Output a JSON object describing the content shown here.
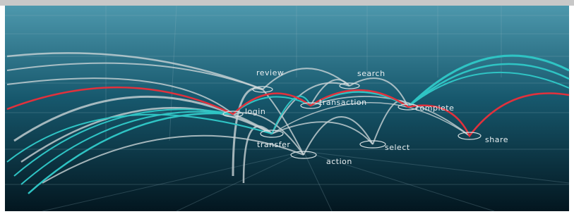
{
  "nodes": [
    {
      "label": "review"
    },
    {
      "label": "search"
    },
    {
      "label": "login"
    },
    {
      "label": "transaction"
    },
    {
      "label": "complete"
    },
    {
      "label": "transfer"
    },
    {
      "label": "select"
    },
    {
      "label": "action"
    },
    {
      "label": "share"
    }
  ]
}
